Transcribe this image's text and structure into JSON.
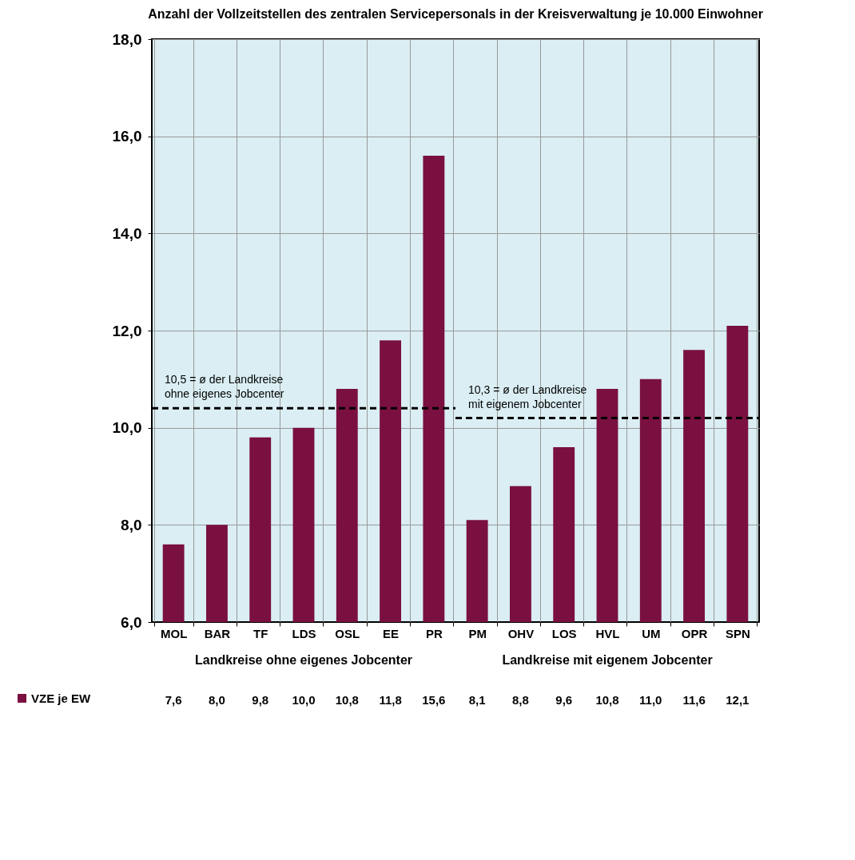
{
  "chart_data": {
    "type": "bar",
    "title": "Anzahl der Vollzeitstellen des zentralen Servicepersonals in der Kreisverwaltung je 10.000 Einwohner",
    "categories": [
      "MOL",
      "BAR",
      "TF",
      "LDS",
      "OSL",
      "EE",
      "PR",
      "PM",
      "OHV",
      "LOS",
      "HVL",
      "UM",
      "OPR",
      "SPN"
    ],
    "series": [
      {
        "name": "VZE je EW",
        "color": "#7a1040",
        "values": [
          7.6,
          8.0,
          9.8,
          10.0,
          10.8,
          11.8,
          15.6,
          8.1,
          8.8,
          9.6,
          10.8,
          11.0,
          11.6,
          12.1
        ],
        "value_labels": [
          "7,6",
          "8,0",
          "9,8",
          "10,0",
          "10,8",
          "11,8",
          "15,6",
          "8,1",
          "8,8",
          "9,6",
          "10,8",
          "11,0",
          "11,6",
          "12,1"
        ]
      }
    ],
    "ylim": [
      6,
      18
    ],
    "yticks": [
      {
        "value": 6,
        "label": "6,0"
      },
      {
        "value": 8,
        "label": "8,0"
      },
      {
        "value": 10,
        "label": "10,0"
      },
      {
        "value": 12,
        "label": "12,0"
      },
      {
        "value": 14,
        "label": "14,0"
      },
      {
        "value": 16,
        "label": "16,0"
      },
      {
        "value": 18,
        "label": "18,0"
      }
    ],
    "ref_lines": [
      {
        "axis": "y",
        "value": 10.4,
        "label": "10,5 = ø der Landkreise ohne eigenes Jobcenter",
        "color": "#000000",
        "line_style": "dashed"
      },
      {
        "axis": "y",
        "value": 10.2,
        "label": "10,3 = ø der Landkreise mit eigenem Jobcenter",
        "color": "#000000",
        "line_style": "dashed"
      }
    ],
    "annotations": [
      "Landkreise ohne eigenes Jobcenter",
      "Landkreise mit eigenem Jobcenter"
    ],
    "grid": true,
    "legend": "bottom left"
  }
}
